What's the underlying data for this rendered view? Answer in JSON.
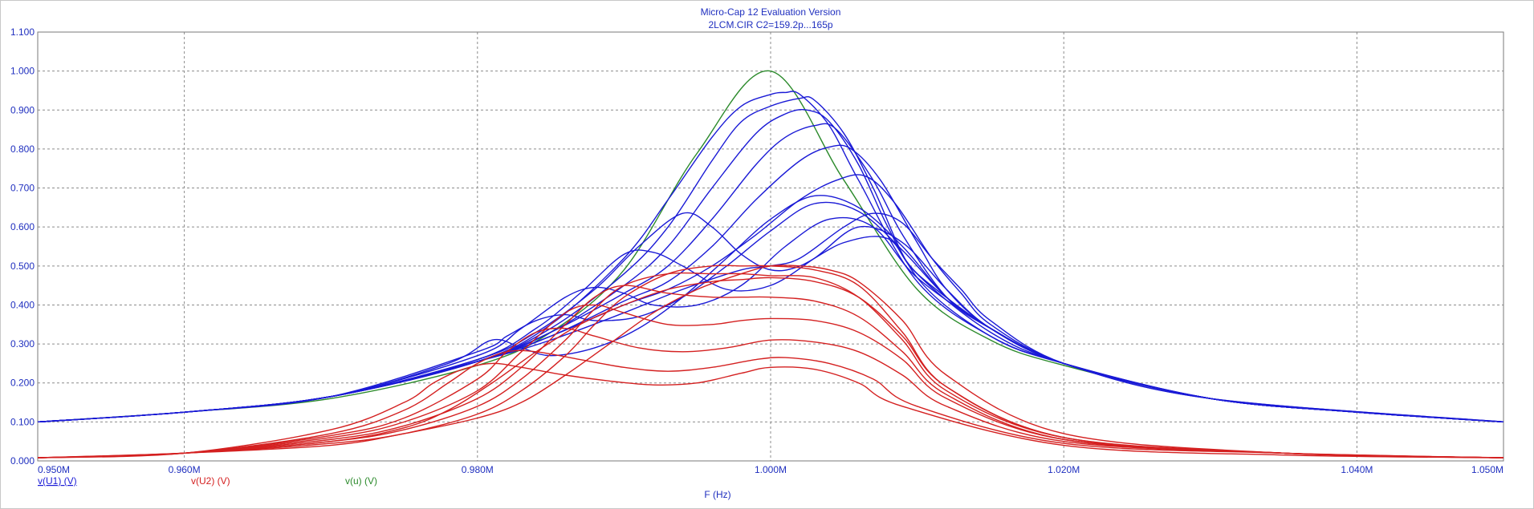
{
  "chart_data": {
    "type": "line",
    "title": "Micro-Cap 12 Evaluation Version",
    "subtitle": "2LCM.CIR C2=159.2p...165p",
    "xlabel": "F (Hz)",
    "ylabel": "",
    "xlim": [
      950000,
      1050000
    ],
    "ylim": [
      0,
      1.1
    ],
    "grid": true,
    "x_ticks": [
      950000,
      960000,
      980000,
      1000000,
      1020000,
      1040000,
      1050000
    ],
    "x_tick_labels": [
      "0.950M",
      "0.960M",
      "0.980M",
      "1.000M",
      "1.020M",
      "1.040M",
      "1.050M"
    ],
    "y_ticks": [
      0,
      0.1,
      0.2,
      0.3,
      0.4,
      0.5,
      0.6,
      0.7,
      0.8,
      0.9,
      1.0,
      1.1
    ],
    "y_tick_labels": [
      "0.000",
      "0.100",
      "0.200",
      "0.300",
      "0.400",
      "0.500",
      "0.600",
      "0.700",
      "0.800",
      "0.900",
      "1.000",
      "1.100"
    ],
    "legend": [
      {
        "label": "v(U1) (V)",
        "color": "#1a1ad6"
      },
      {
        "label": "v(U2) (V)",
        "color": "#d42020"
      },
      {
        "label": "v(u) (V)",
        "color": "#2b8a2b"
      }
    ],
    "series": [
      {
        "legend_index": 2,
        "color": "#2b8a2b",
        "x": [
          950000,
          960000,
          970000,
          980000,
          985000,
          990000,
          995000,
          1000000,
          1005000,
          1010000,
          1015000,
          1020000,
          1030000,
          1040000,
          1050000
        ],
        "y": [
          0.1,
          0.125,
          0.16,
          0.245,
          0.33,
          0.49,
          0.79,
          1.0,
          0.72,
          0.44,
          0.31,
          0.245,
          0.16,
          0.125,
          0.1
        ]
      },
      {
        "legend_index": 0,
        "color": "#1a1ad6",
        "x": [
          950000,
          960000,
          970000,
          980000,
          985000,
          990000,
          993000,
          996000,
          998000,
          1000000,
          1001000,
          1002000,
          1004000,
          1006000,
          1010000,
          1015000,
          1020000,
          1030000,
          1040000,
          1050000
        ],
        "y": [
          0.1,
          0.125,
          0.165,
          0.255,
          0.35,
          0.52,
          0.67,
          0.83,
          0.91,
          0.94,
          0.945,
          0.94,
          0.86,
          0.72,
          0.46,
          0.32,
          0.25,
          0.16,
          0.125,
          0.1
        ]
      },
      {
        "legend_index": 0,
        "color": "#1a1ad6",
        "x": [
          950000,
          960000,
          970000,
          980000,
          985000,
          990000,
          993000,
          996000,
          998000,
          1000000,
          1002000,
          1003000,
          1005000,
          1007000,
          1010000,
          1015000,
          1020000,
          1030000,
          1040000,
          1050000
        ],
        "y": [
          0.1,
          0.125,
          0.165,
          0.255,
          0.34,
          0.48,
          0.6,
          0.77,
          0.87,
          0.91,
          0.93,
          0.925,
          0.84,
          0.7,
          0.47,
          0.32,
          0.25,
          0.16,
          0.125,
          0.1
        ]
      },
      {
        "legend_index": 0,
        "color": "#1a1ad6",
        "x": [
          950000,
          960000,
          970000,
          980000,
          985000,
          990000,
          993000,
          996000,
          999000,
          1001000,
          1002500,
          1004000,
          1006000,
          1008000,
          1010000,
          1015000,
          1020000,
          1030000,
          1040000,
          1050000
        ],
        "y": [
          0.1,
          0.125,
          0.165,
          0.255,
          0.33,
          0.45,
          0.55,
          0.7,
          0.84,
          0.89,
          0.9,
          0.87,
          0.76,
          0.6,
          0.48,
          0.33,
          0.25,
          0.16,
          0.125,
          0.1
        ]
      },
      {
        "legend_index": 0,
        "color": "#1a1ad6",
        "x": [
          950000,
          960000,
          970000,
          980000,
          985000,
          990000,
          993000,
          996000,
          999000,
          1001000,
          1003000,
          1004500,
          1007000,
          1009000,
          1012000,
          1015000,
          1020000,
          1030000,
          1040000,
          1050000
        ],
        "y": [
          0.1,
          0.125,
          0.165,
          0.255,
          0.33,
          0.43,
          0.5,
          0.62,
          0.76,
          0.83,
          0.86,
          0.85,
          0.72,
          0.58,
          0.42,
          0.34,
          0.25,
          0.16,
          0.125,
          0.1
        ]
      },
      {
        "legend_index": 0,
        "color": "#1a1ad6",
        "x": [
          950000,
          960000,
          970000,
          980000,
          985000,
          990000,
          993000,
          996000,
          999000,
          1002000,
          1004000,
          1005500,
          1007500,
          1010000,
          1012000,
          1015000,
          1020000,
          1030000,
          1040000,
          1050000
        ],
        "y": [
          0.1,
          0.125,
          0.165,
          0.255,
          0.32,
          0.41,
          0.46,
          0.55,
          0.67,
          0.77,
          0.805,
          0.8,
          0.72,
          0.56,
          0.44,
          0.34,
          0.25,
          0.16,
          0.125,
          0.1
        ]
      },
      {
        "legend_index": 0,
        "color": "#1a1ad6",
        "x": [
          950000,
          960000,
          970000,
          980000,
          985000,
          990000,
          993000,
          996000,
          999000,
          1002000,
          1004500,
          1006500,
          1008500,
          1011000,
          1013000,
          1015000,
          1020000,
          1030000,
          1040000,
          1050000
        ],
        "y": [
          0.1,
          0.125,
          0.165,
          0.255,
          0.32,
          0.4,
          0.44,
          0.5,
          0.58,
          0.67,
          0.72,
          0.73,
          0.66,
          0.52,
          0.43,
          0.35,
          0.25,
          0.16,
          0.125,
          0.1
        ]
      },
      {
        "legend_index": 0,
        "color": "#1a1ad6",
        "x": [
          950000,
          960000,
          970000,
          980000,
          985000,
          990000,
          994000,
          998000,
          1000000,
          1002000,
          1005000,
          1007000,
          1009000,
          1011000,
          1013000,
          1015000,
          1020000,
          1030000,
          1040000,
          1050000
        ],
        "y": [
          0.1,
          0.125,
          0.165,
          0.255,
          0.31,
          0.38,
          0.44,
          0.49,
          0.5,
          0.52,
          0.6,
          0.635,
          0.61,
          0.52,
          0.44,
          0.36,
          0.25,
          0.16,
          0.125,
          0.1
        ]
      },
      {
        "legend_index": 0,
        "color": "#1a1ad6",
        "x": [
          950000,
          960000,
          970000,
          980000,
          984000,
          988000,
          991000,
          994000,
          996000,
          998000,
          1000000,
          1002000,
          1005000,
          1008000,
          1010000,
          1015000,
          1020000,
          1030000,
          1040000,
          1050000
        ],
        "y": [
          0.1,
          0.125,
          0.165,
          0.26,
          0.33,
          0.44,
          0.55,
          0.635,
          0.6,
          0.53,
          0.49,
          0.5,
          0.56,
          0.57,
          0.48,
          0.34,
          0.25,
          0.16,
          0.125,
          0.1
        ]
      },
      {
        "legend_index": 0,
        "color": "#1a1ad6",
        "x": [
          950000,
          960000,
          970000,
          980000,
          984000,
          987000,
          990000,
          992000,
          994000,
          997000,
          1000000,
          1003000,
          1006000,
          1009000,
          1012000,
          1015000,
          1020000,
          1030000,
          1040000,
          1050000
        ],
        "y": [
          0.1,
          0.125,
          0.165,
          0.26,
          0.34,
          0.43,
          0.53,
          0.535,
          0.5,
          0.44,
          0.45,
          0.52,
          0.6,
          0.56,
          0.44,
          0.34,
          0.25,
          0.16,
          0.125,
          0.1
        ]
      },
      {
        "legend_index": 0,
        "color": "#1a1ad6",
        "x": [
          950000,
          960000,
          970000,
          980000,
          983000,
          986000,
          988000,
          990000,
          992000,
          995000,
          998000,
          1001000,
          1004000,
          1007000,
          1010000,
          1015000,
          1020000,
          1030000,
          1040000,
          1050000
        ],
        "y": [
          0.1,
          0.125,
          0.165,
          0.27,
          0.34,
          0.42,
          0.445,
          0.43,
          0.4,
          0.4,
          0.45,
          0.55,
          0.62,
          0.6,
          0.47,
          0.34,
          0.25,
          0.16,
          0.125,
          0.1
        ]
      },
      {
        "legend_index": 0,
        "color": "#1a1ad6",
        "x": [
          950000,
          960000,
          970000,
          980000,
          982000,
          984000,
          986000,
          988000,
          991000,
          994000,
          997000,
          1000000,
          1003000,
          1006000,
          1009000,
          1012000,
          1015000,
          1020000,
          1030000,
          1050000
        ],
        "y": [
          0.1,
          0.125,
          0.165,
          0.28,
          0.32,
          0.36,
          0.375,
          0.36,
          0.37,
          0.42,
          0.5,
          0.59,
          0.66,
          0.64,
          0.54,
          0.42,
          0.34,
          0.25,
          0.16,
          0.1
        ]
      },
      {
        "legend_index": 0,
        "color": "#1a1ad6",
        "x": [
          950000,
          960000,
          970000,
          978000,
          981000,
          983000,
          985000,
          988000,
          991000,
          994000,
          997000,
          1000000,
          1003000,
          1006000,
          1009000,
          1012000,
          1015000,
          1020000,
          1030000,
          1050000
        ],
        "y": [
          0.1,
          0.125,
          0.165,
          0.25,
          0.31,
          0.29,
          0.27,
          0.29,
          0.34,
          0.42,
          0.52,
          0.62,
          0.68,
          0.65,
          0.55,
          0.42,
          0.34,
          0.25,
          0.16,
          0.1
        ]
      },
      {
        "legend_index": 1,
        "color": "#d42020",
        "x": [
          950000,
          960000,
          970000,
          975000,
          980000,
          983000,
          986000,
          988000,
          990000,
          993000,
          996000,
          998000,
          1000000,
          1003000,
          1006000,
          1009000,
          1012000,
          1020000,
          1035000,
          1050000
        ],
        "y": [
          0.008,
          0.02,
          0.045,
          0.07,
          0.12,
          0.18,
          0.27,
          0.35,
          0.42,
          0.48,
          0.5,
          0.5,
          0.5,
          0.49,
          0.45,
          0.33,
          0.19,
          0.06,
          0.02,
          0.008
        ]
      },
      {
        "legend_index": 1,
        "color": "#d42020",
        "x": [
          950000,
          960000,
          970000,
          975000,
          980000,
          983000,
          986000,
          988000,
          990000,
          993000,
          996000,
          998000,
          1000000,
          1003000,
          1006000,
          1009000,
          1012000,
          1020000,
          1035000,
          1050000
        ],
        "y": [
          0.008,
          0.02,
          0.05,
          0.08,
          0.14,
          0.21,
          0.31,
          0.39,
          0.45,
          0.48,
          0.48,
          0.48,
          0.475,
          0.47,
          0.42,
          0.31,
          0.18,
          0.06,
          0.02,
          0.008
        ]
      },
      {
        "legend_index": 1,
        "color": "#d42020",
        "x": [
          950000,
          960000,
          970000,
          975000,
          980000,
          983000,
          986000,
          988000,
          990000,
          993000,
          996000,
          998000,
          1000000,
          1003000,
          1006000,
          1009000,
          1012000,
          1020000,
          1035000,
          1050000
        ],
        "y": [
          0.008,
          0.02,
          0.055,
          0.09,
          0.16,
          0.24,
          0.35,
          0.42,
          0.45,
          0.43,
          0.42,
          0.42,
          0.42,
          0.41,
          0.37,
          0.28,
          0.17,
          0.055,
          0.02,
          0.008
        ]
      },
      {
        "legend_index": 1,
        "color": "#d42020",
        "x": [
          950000,
          960000,
          970000,
          975000,
          980000,
          983000,
          986000,
          988000,
          990000,
          993000,
          996000,
          998000,
          1000000,
          1003000,
          1006000,
          1009000,
          1012000,
          1020000,
          1035000,
          1050000
        ],
        "y": [
          0.008,
          0.02,
          0.06,
          0.1,
          0.18,
          0.28,
          0.38,
          0.4,
          0.38,
          0.35,
          0.35,
          0.36,
          0.365,
          0.36,
          0.33,
          0.26,
          0.16,
          0.055,
          0.02,
          0.008
        ]
      },
      {
        "legend_index": 1,
        "color": "#d42020",
        "x": [
          950000,
          960000,
          970000,
          975000,
          980000,
          982000,
          984000,
          986000,
          988000,
          991000,
          994000,
          997000,
          1000000,
          1003000,
          1006000,
          1009000,
          1012000,
          1020000,
          1035000,
          1050000
        ],
        "y": [
          0.008,
          0.02,
          0.065,
          0.11,
          0.21,
          0.28,
          0.33,
          0.34,
          0.32,
          0.29,
          0.28,
          0.29,
          0.31,
          0.305,
          0.28,
          0.22,
          0.14,
          0.05,
          0.02,
          0.008
        ]
      },
      {
        "legend_index": 1,
        "color": "#d42020",
        "x": [
          950000,
          960000,
          970000,
          975000,
          978000,
          980000,
          982000,
          984000,
          987000,
          990000,
          993000,
          996000,
          999000,
          1001000,
          1004000,
          1007000,
          1010000,
          1020000,
          1035000,
          1050000
        ],
        "y": [
          0.008,
          0.02,
          0.07,
          0.13,
          0.2,
          0.25,
          0.28,
          0.28,
          0.26,
          0.24,
          0.23,
          0.24,
          0.26,
          0.265,
          0.25,
          0.21,
          0.14,
          0.045,
          0.02,
          0.008
        ]
      },
      {
        "legend_index": 1,
        "color": "#d42020",
        "x": [
          950000,
          960000,
          970000,
          975000,
          977000,
          979000,
          981000,
          983000,
          986000,
          989000,
          992000,
          995000,
          998000,
          1000000,
          1003000,
          1006000,
          1009000,
          1020000,
          1035000,
          1050000
        ],
        "y": [
          0.008,
          0.02,
          0.08,
          0.15,
          0.2,
          0.235,
          0.25,
          0.24,
          0.22,
          0.205,
          0.195,
          0.2,
          0.225,
          0.24,
          0.235,
          0.2,
          0.14,
          0.04,
          0.015,
          0.008
        ]
      },
      {
        "legend_index": 1,
        "color": "#d42020",
        "x": [
          950000,
          960000,
          970000,
          975000,
          978000,
          981000,
          984000,
          987000,
          990000,
          993000,
          996000,
          998000,
          1000000,
          1003000,
          1006000,
          1009000,
          1012000,
          1020000,
          1035000,
          1050000
        ],
        "y": [
          0.008,
          0.02,
          0.05,
          0.085,
          0.13,
          0.2,
          0.28,
          0.35,
          0.4,
          0.44,
          0.46,
          0.465,
          0.47,
          0.46,
          0.42,
          0.32,
          0.19,
          0.06,
          0.02,
          0.008
        ]
      },
      {
        "legend_index": 1,
        "color": "#d42020",
        "x": [
          950000,
          960000,
          970000,
          975000,
          980000,
          983000,
          986000,
          989000,
          992000,
          995000,
          998000,
          1000000,
          1002000,
          1004000,
          1006000,
          1009000,
          1012000,
          1020000,
          1035000,
          1050000
        ],
        "y": [
          0.008,
          0.02,
          0.04,
          0.07,
          0.11,
          0.15,
          0.22,
          0.3,
          0.38,
          0.44,
          0.48,
          0.5,
          0.5,
          0.49,
          0.46,
          0.36,
          0.22,
          0.07,
          0.02,
          0.008
        ]
      }
    ]
  }
}
